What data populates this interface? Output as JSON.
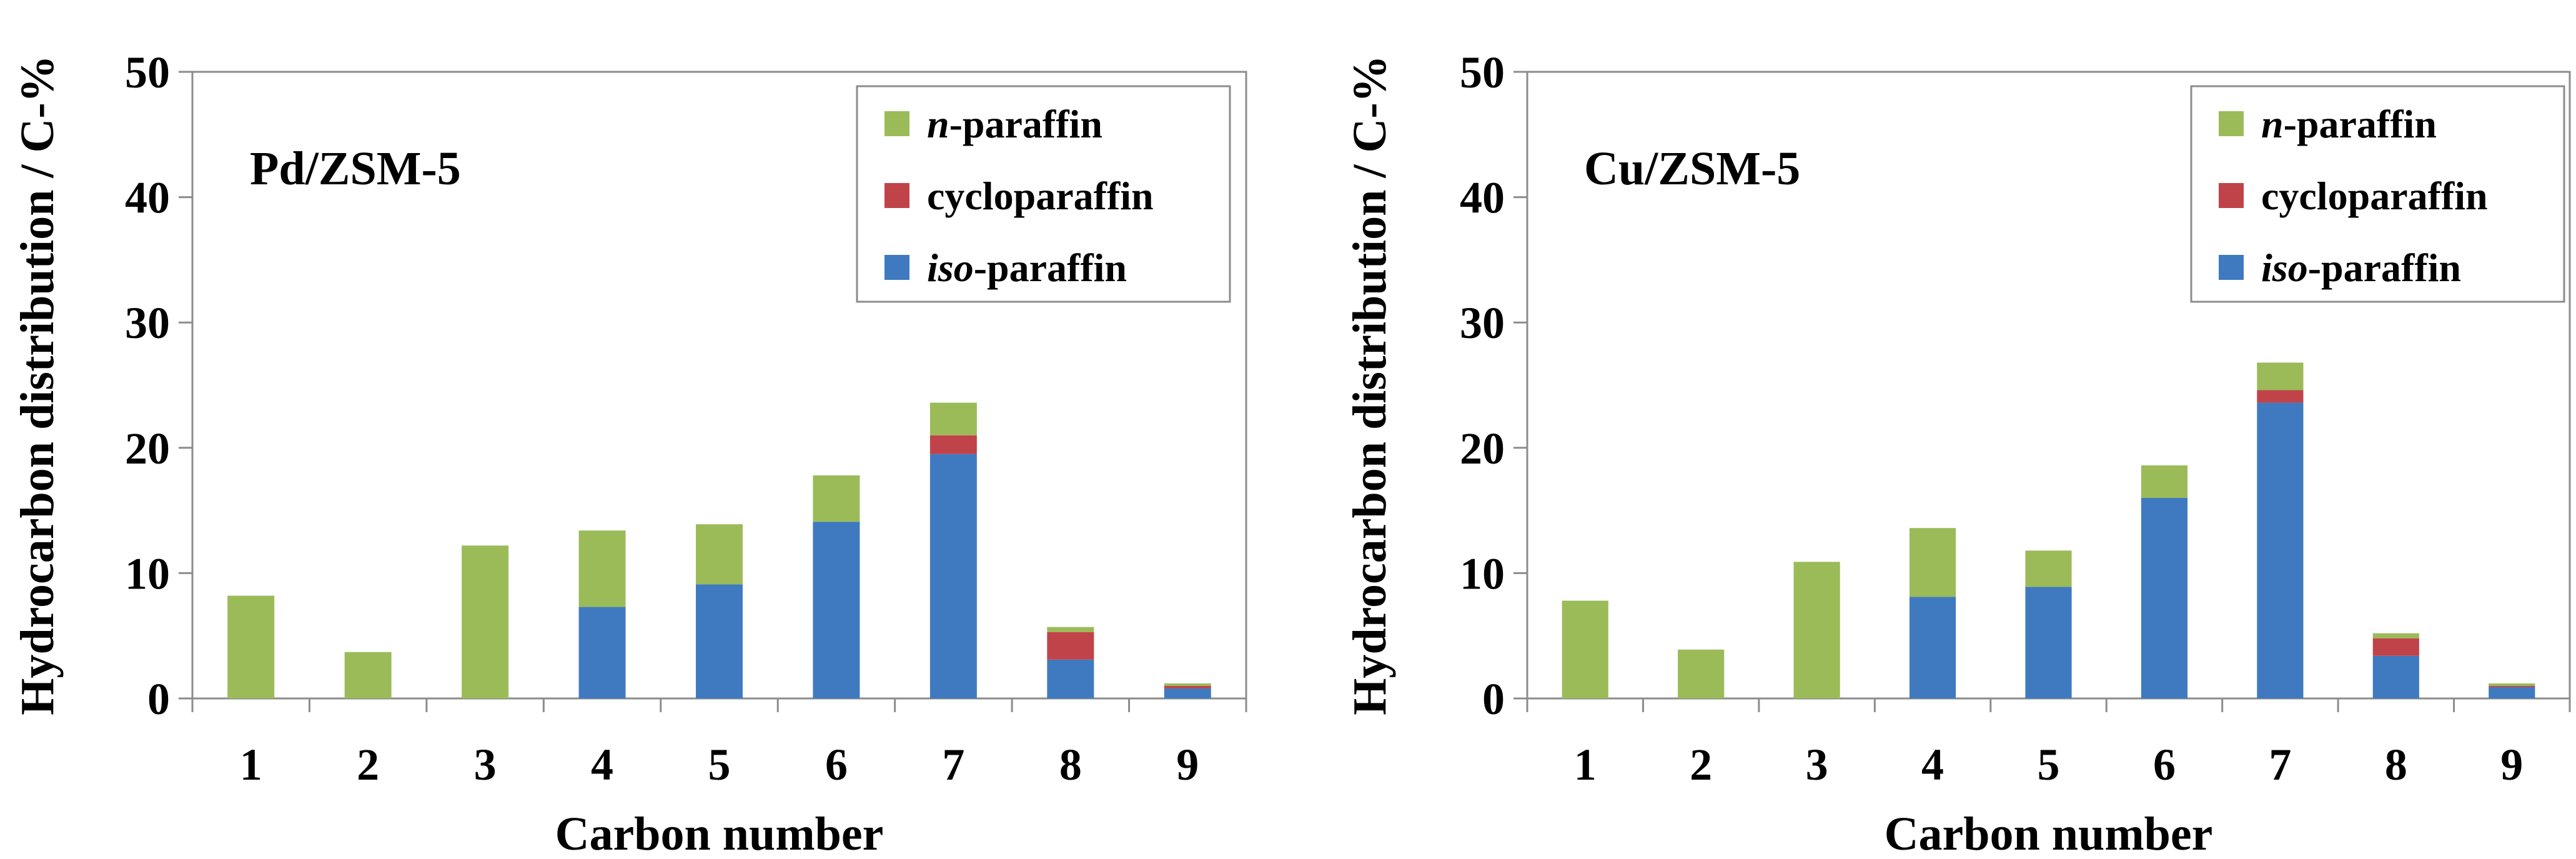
{
  "chart_data": [
    {
      "type": "bar",
      "stacked": true,
      "panel_label": "Pd/ZSM-5",
      "xlabel": "Carbon number",
      "ylabel": "Hydrocarbon distribution / C-%",
      "ylim": [
        0,
        50
      ],
      "yticks": [
        0,
        10,
        20,
        30,
        40,
        50
      ],
      "grid": false,
      "legend_position": "top-right",
      "categories": [
        "1",
        "2",
        "3",
        "4",
        "5",
        "6",
        "7",
        "8",
        "9"
      ],
      "series": [
        {
          "name": "iso-paraffin",
          "name_italic": "iso",
          "name_rest": "-paraffin",
          "color": "#3f7ac0",
          "values": [
            0,
            0,
            0,
            7.3,
            9.1,
            14.1,
            19.5,
            3.1,
            0.8
          ]
        },
        {
          "name": "cycloparaffin",
          "name_italic": "",
          "name_rest": "cycloparaffin",
          "color": "#c0434a",
          "values": [
            0,
            0,
            0,
            0,
            0,
            0,
            1.5,
            2.2,
            0.2
          ]
        },
        {
          "name": "n-paraffin",
          "name_italic": "n",
          "name_rest": "-paraffin",
          "color": "#9bbb59",
          "values": [
            8.2,
            3.7,
            12.2,
            6.1,
            4.8,
            3.7,
            2.6,
            0.4,
            0.2
          ]
        }
      ]
    },
    {
      "type": "bar",
      "stacked": true,
      "panel_label": "Cu/ZSM-5",
      "xlabel": "Carbon number",
      "ylabel": "Hydrocarbon distribution / C-%",
      "ylim": [
        0,
        50
      ],
      "yticks": [
        0,
        10,
        20,
        30,
        40,
        50
      ],
      "grid": false,
      "legend_position": "top-right",
      "categories": [
        "1",
        "2",
        "3",
        "4",
        "5",
        "6",
        "7",
        "8",
        "9"
      ],
      "series": [
        {
          "name": "iso-paraffin",
          "name_italic": "iso",
          "name_rest": "-paraffin",
          "color": "#3f7ac0",
          "values": [
            0,
            0,
            0,
            8.1,
            8.9,
            16.0,
            23.6,
            3.4,
            0.9
          ]
        },
        {
          "name": "cycloparaffin",
          "name_italic": "",
          "name_rest": "cycloparaffin",
          "color": "#c0434a",
          "values": [
            0,
            0,
            0,
            0,
            0,
            0,
            1.0,
            1.4,
            0.1
          ]
        },
        {
          "name": "n-paraffin",
          "name_italic": "n",
          "name_rest": "-paraffin",
          "color": "#9bbb59",
          "values": [
            7.8,
            3.9,
            10.9,
            5.5,
            2.9,
            2.6,
            2.2,
            0.4,
            0.2
          ]
        }
      ]
    }
  ]
}
